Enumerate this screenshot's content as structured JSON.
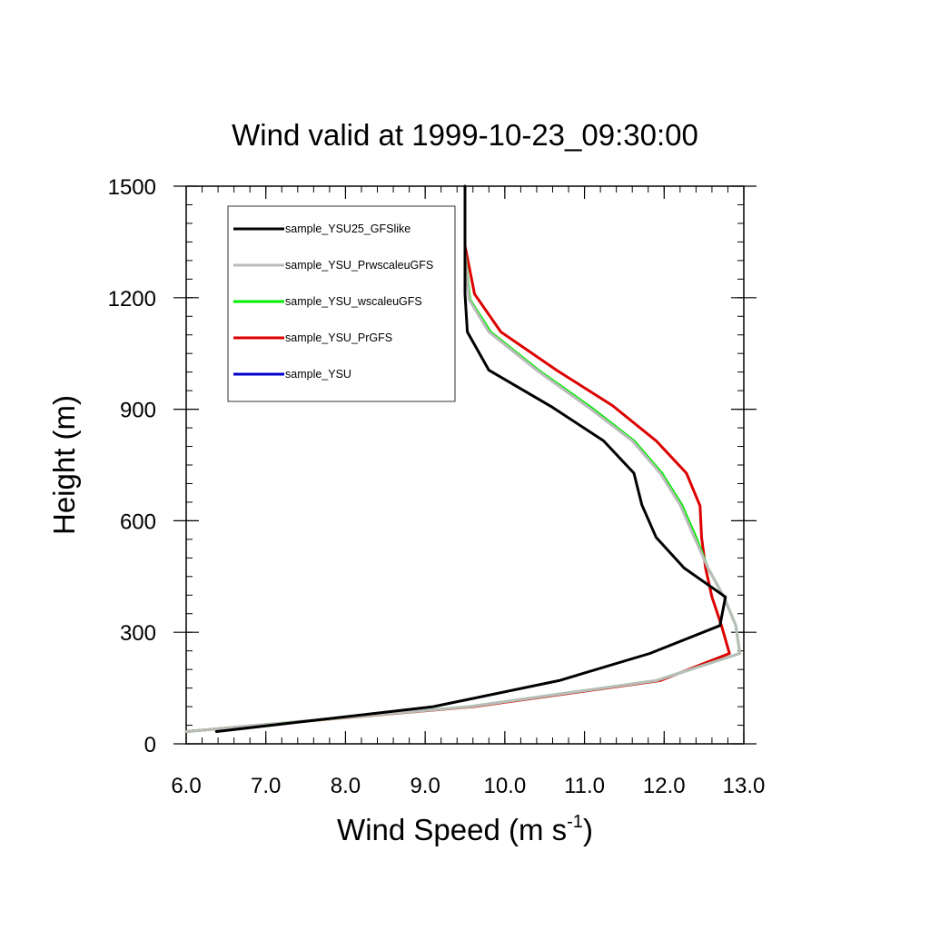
{
  "chart_data": {
    "type": "line",
    "title": "Wind valid at 1999-10-23_09:30:00",
    "xlabel": "Wind Speed (m s",
    "xlabel_sup": "-1",
    "xlabel_close": ")",
    "ylabel": "Height (m)",
    "xlim": [
      6.0,
      13.0
    ],
    "ylim": [
      0,
      1500
    ],
    "xticks": [
      6.0,
      7.0,
      8.0,
      9.0,
      10.0,
      11.0,
      12.0,
      13.0
    ],
    "xtick_labels": [
      "6.0",
      "7.0",
      "8.0",
      "9.0",
      "10.0",
      "11.0",
      "12.0",
      "13.0"
    ],
    "yticks": [
      0,
      300,
      600,
      900,
      1200,
      1500
    ],
    "ytick_labels": [
      "0",
      "300",
      "600",
      "900",
      "1200",
      "1500"
    ],
    "grid": false,
    "legend_position": "top-left",
    "series": [
      {
        "name": "sample_YSU25_GFSlike",
        "color": "#000000",
        "points": [
          [
            6.38,
            33
          ],
          [
            9.1,
            100
          ],
          [
            10.68,
            170
          ],
          [
            11.82,
            243
          ],
          [
            12.7,
            318
          ],
          [
            12.77,
            395
          ],
          [
            12.25,
            473
          ],
          [
            11.9,
            555
          ],
          [
            11.72,
            643
          ],
          [
            11.62,
            728
          ],
          [
            11.24,
            815
          ],
          [
            10.6,
            905
          ],
          [
            9.8,
            1005
          ],
          [
            9.53,
            1108
          ],
          [
            9.5,
            1210
          ],
          [
            9.5,
            1320
          ],
          [
            9.5,
            1500
          ]
        ]
      },
      {
        "name": "sample_YSU_PrwscaleuGFS",
        "color": "#bbbbbb",
        "points": [
          [
            6.0,
            33
          ],
          [
            9.55,
            100
          ],
          [
            11.9,
            170
          ],
          [
            12.95,
            243
          ],
          [
            12.9,
            318
          ],
          [
            12.75,
            395
          ],
          [
            12.55,
            473
          ],
          [
            12.38,
            555
          ],
          [
            12.2,
            643
          ],
          [
            11.95,
            728
          ],
          [
            11.6,
            815
          ],
          [
            11.05,
            905
          ],
          [
            10.4,
            1005
          ],
          [
            9.8,
            1108
          ],
          [
            9.55,
            1195
          ],
          [
            9.5,
            1320
          ],
          [
            9.5,
            1500
          ]
        ]
      },
      {
        "name": "sample_YSU_wscaleuGFS",
        "color": "#00ee00",
        "points": [
          [
            6.0,
            33
          ],
          [
            9.55,
            100
          ],
          [
            11.9,
            170
          ],
          [
            12.95,
            243
          ],
          [
            12.9,
            318
          ],
          [
            12.75,
            395
          ],
          [
            12.55,
            473
          ],
          [
            12.4,
            555
          ],
          [
            12.22,
            643
          ],
          [
            11.97,
            728
          ],
          [
            11.62,
            815
          ],
          [
            11.08,
            905
          ],
          [
            10.42,
            1005
          ],
          [
            9.82,
            1108
          ],
          [
            9.56,
            1195
          ],
          [
            9.5,
            1320
          ],
          [
            9.5,
            1500
          ]
        ]
      },
      {
        "name": "sample_YSU_PrGFS",
        "color": "#dd0000",
        "points": [
          [
            6.0,
            33
          ],
          [
            9.6,
            100
          ],
          [
            11.95,
            170
          ],
          [
            12.82,
            243
          ],
          [
            12.72,
            318
          ],
          [
            12.6,
            395
          ],
          [
            12.52,
            473
          ],
          [
            12.47,
            555
          ],
          [
            12.45,
            640
          ],
          [
            12.28,
            728
          ],
          [
            11.9,
            815
          ],
          [
            11.35,
            910
          ],
          [
            10.65,
            1005
          ],
          [
            9.95,
            1108
          ],
          [
            9.62,
            1210
          ],
          [
            9.5,
            1340
          ],
          [
            9.5,
            1500
          ]
        ]
      },
      {
        "name": "sample_YSU",
        "color": "#0000cc",
        "points": []
      }
    ]
  }
}
